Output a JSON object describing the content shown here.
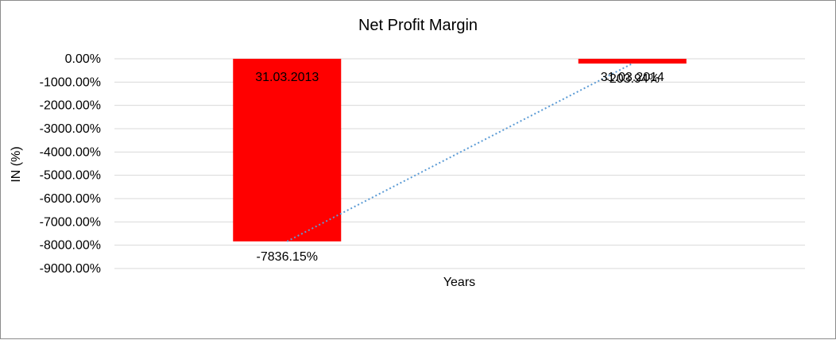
{
  "chart_data": {
    "type": "bar",
    "title": "Net Profit Margin",
    "xlabel": "Years",
    "ylabel": "IN (%)",
    "categories": [
      "31.03.2013",
      "31.03.2014"
    ],
    "values": [
      -7836.15,
      -203.94
    ],
    "data_labels": [
      "-7836.15%",
      "-203.94%"
    ],
    "ylim": [
      -9000,
      0
    ],
    "y_ticks": [
      0,
      -1000,
      -2000,
      -3000,
      -4000,
      -5000,
      -6000,
      -7000,
      -8000,
      -9000
    ],
    "y_tick_labels": [
      "0.00%",
      "-1000.00%",
      "-2000.00%",
      "-3000.00%",
      "-4000.00%",
      "-5000.00%",
      "-6000.00%",
      "-7000.00%",
      "-8000.00%",
      "-9000.00%"
    ],
    "grid": true,
    "trendline": {
      "type": "linear",
      "style": "dotted"
    },
    "colors": {
      "bar": "#ff0000",
      "grid": "#d9d9d9",
      "trendline": "#5b9bd5"
    }
  }
}
